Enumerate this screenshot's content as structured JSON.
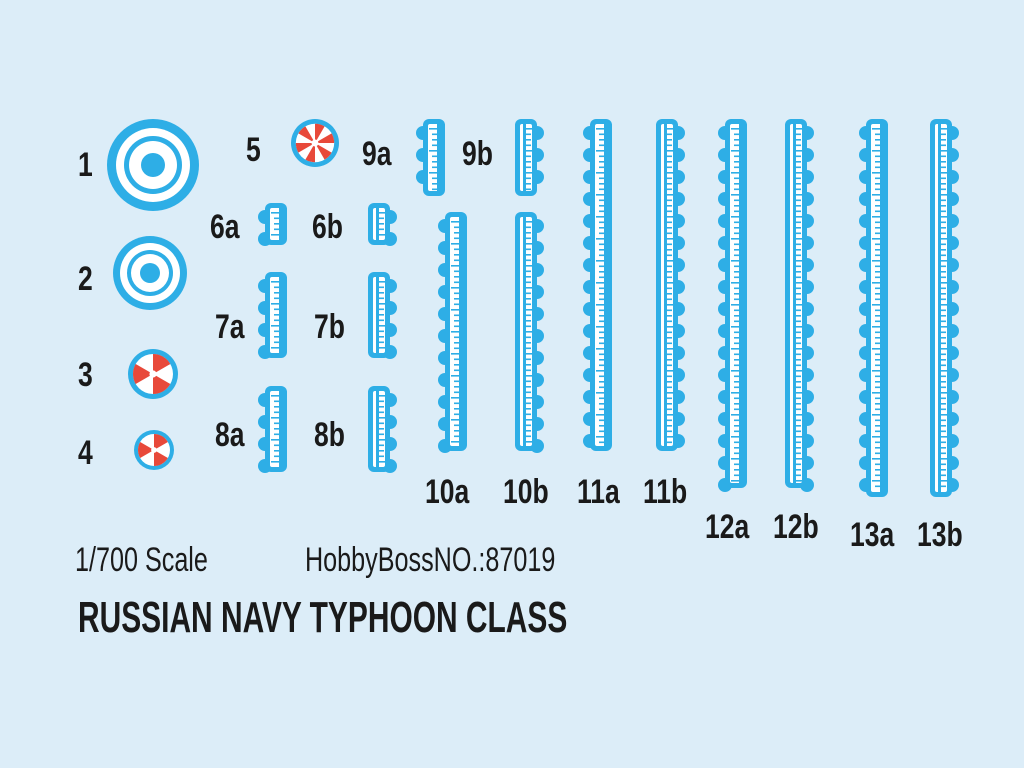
{
  "labels": {
    "d1": "1",
    "d2": "2",
    "d3": "3",
    "d4": "4",
    "d5": "5",
    "d6a": "6a",
    "d6b": "6b",
    "d7a": "7a",
    "d7b": "7b",
    "d8a": "8a",
    "d8b": "8b",
    "d9a": "9a",
    "d9b": "9b",
    "d10a": "10a",
    "d10b": "10b",
    "d11a": "11a",
    "d11b": "11b",
    "d12a": "12a",
    "d12b": "12b",
    "d13a": "13a",
    "d13b": "13b"
  },
  "footer": {
    "scale": "1/700  Scale",
    "hobby": "HobbyBossNO.:87019",
    "title": "RUSSIAN NAVY TYPHOON CLASS"
  },
  "colors": {
    "background": "#dcedf8",
    "decal_blue": "#2eaee6",
    "decal_red": "#e8493a",
    "text": "#1a1a1a"
  }
}
